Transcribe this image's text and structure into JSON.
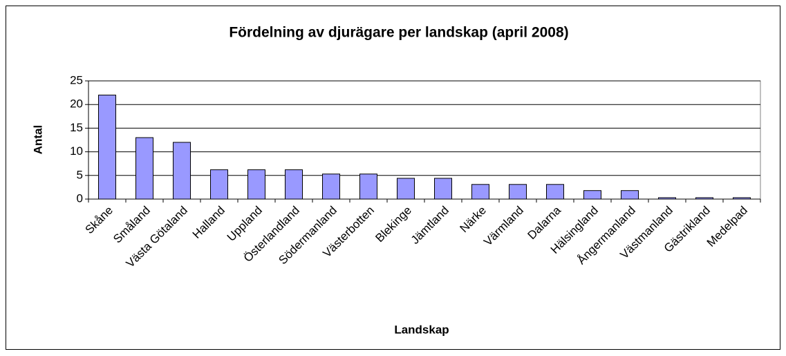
{
  "chart_data": {
    "type": "bar",
    "title": "Fördelning av djurägare per landskap (april 2008)",
    "x_label": "Landskap",
    "y_label": "Antal",
    "categories": [
      "Skåne",
      "Småland",
      "Västa Götaland",
      "Halland",
      "Uppland",
      "Österlandland",
      "Södermanland",
      "Västerbotten",
      "Blekinge",
      "Jämtland",
      "Närke",
      "Värmland",
      "Dalarna",
      "Hälsingland",
      "Ångermanland",
      "Västmanland",
      "Gästrikland",
      "Medelpad"
    ],
    "values": [
      22,
      13,
      12,
      6.2,
      6.2,
      6.2,
      5.3,
      5.3,
      4.4,
      4.4,
      3.1,
      3.1,
      3.1,
      1.8,
      1.8,
      0.3,
      0.3,
      0.3
    ],
    "color": "#9999ff",
    "ylim": [
      0,
      25
    ],
    "yticks": [
      0,
      5,
      10,
      15,
      20,
      25
    ],
    "grid": true
  }
}
